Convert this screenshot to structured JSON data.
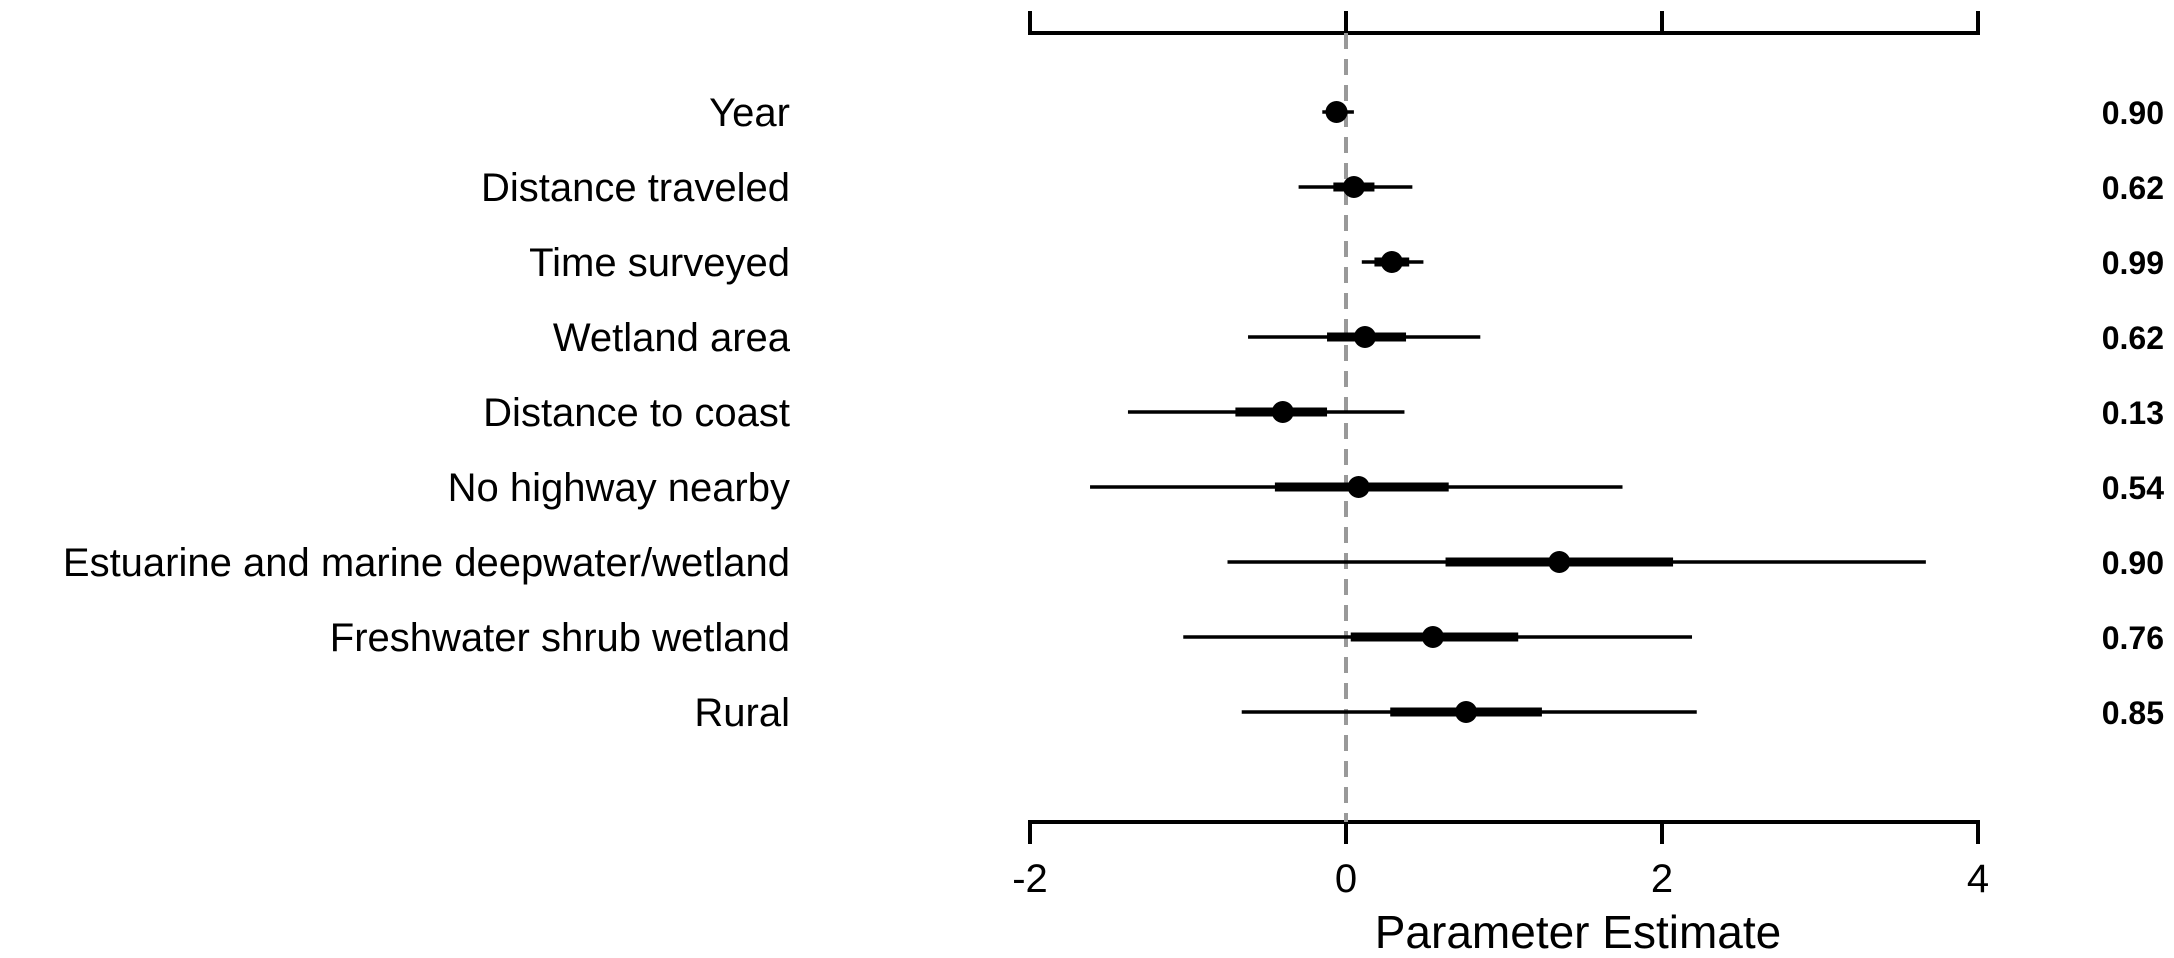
{
  "chart_data": {
    "type": "forest",
    "title": "",
    "xlabel": "Parameter Estimate",
    "ylabel": "",
    "xlim": [
      -2,
      4
    ],
    "xticks": [
      -2,
      0,
      2,
      4
    ],
    "xtick_labels": [
      "-2",
      "0",
      "2",
      "4"
    ],
    "reference_line": 0,
    "reference_line_color": "#999999",
    "mark_color": "#000000",
    "grid": false,
    "legend": "none",
    "rows": [
      {
        "label": "Year",
        "estimate": -0.06,
        "inner": [
          -0.1,
          -0.02
        ],
        "outer": [
          -0.15,
          0.05
        ],
        "prob": "0.90"
      },
      {
        "label": "Distance traveled",
        "estimate": 0.05,
        "inner": [
          -0.08,
          0.18
        ],
        "outer": [
          -0.3,
          0.42
        ],
        "prob": "0.62"
      },
      {
        "label": "Time surveyed",
        "estimate": 0.29,
        "inner": [
          0.18,
          0.4
        ],
        "outer": [
          0.1,
          0.49
        ],
        "prob": "0.99"
      },
      {
        "label": "Wetland area",
        "estimate": 0.12,
        "inner": [
          -0.12,
          0.38
        ],
        "outer": [
          -0.62,
          0.85
        ],
        "prob": "0.62"
      },
      {
        "label": "Distance to coast",
        "estimate": -0.4,
        "inner": [
          -0.7,
          -0.12
        ],
        "outer": [
          -1.38,
          0.37
        ],
        "prob": "0.13"
      },
      {
        "label": "No highway nearby",
        "estimate": 0.08,
        "inner": [
          -0.45,
          0.65
        ],
        "outer": [
          -1.62,
          1.75
        ],
        "prob": "0.54"
      },
      {
        "label": "Estuarine and marine deepwater/wetland",
        "estimate": 1.35,
        "inner": [
          0.63,
          2.07
        ],
        "outer": [
          -0.75,
          3.67
        ],
        "prob": "0.90"
      },
      {
        "label": "Freshwater shrub wetland",
        "estimate": 0.55,
        "inner": [
          0.03,
          1.09
        ],
        "outer": [
          -1.03,
          2.19
        ],
        "prob": "0.76"
      },
      {
        "label": "Rural",
        "estimate": 0.76,
        "inner": [
          0.28,
          1.24
        ],
        "outer": [
          -0.66,
          2.22
        ],
        "prob": "0.85"
      }
    ]
  }
}
